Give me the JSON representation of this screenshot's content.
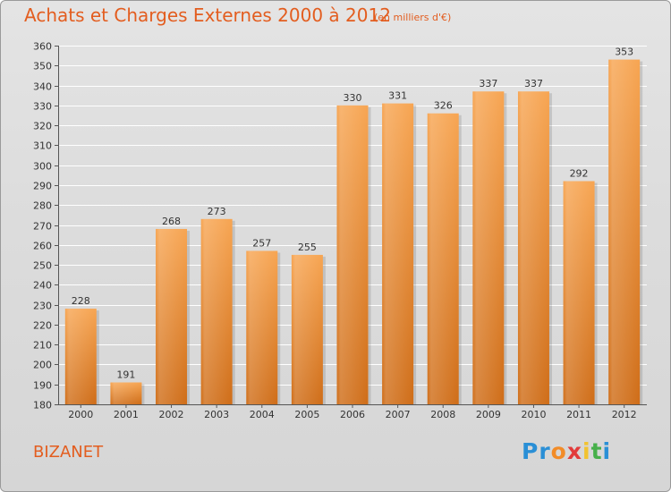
{
  "header": {
    "title": "Achats et Charges Externes 2000 à 2012",
    "subtitle": "(en milliers d'€)"
  },
  "footer": {
    "commune": "BIZANET",
    "logo": [
      "P",
      "r",
      "o",
      "x",
      "i",
      "t",
      "i"
    ],
    "logo_colors": [
      "#2a8fd6",
      "#2a8fd6",
      "#f28c28",
      "#e23b3b",
      "#f2c230",
      "#47b04b",
      "#2a8fd6"
    ]
  },
  "colors": {
    "bar_top": "#f7a552",
    "bar_bottom": "#cf6d18",
    "text": "#333333",
    "accent": "#e35d1f"
  },
  "chart_data": {
    "type": "bar",
    "categories": [
      "2000",
      "2001",
      "2002",
      "2003",
      "2004",
      "2005",
      "2006",
      "2007",
      "2008",
      "2009",
      "2010",
      "2011",
      "2012"
    ],
    "values": [
      228,
      191,
      268,
      273,
      257,
      255,
      330,
      331,
      326,
      337,
      337,
      292,
      353
    ],
    "ylim": [
      180,
      360
    ],
    "yticks": [
      180,
      190,
      200,
      210,
      220,
      230,
      240,
      250,
      260,
      270,
      280,
      290,
      300,
      310,
      320,
      330,
      340,
      350,
      360
    ],
    "grid": true
  }
}
